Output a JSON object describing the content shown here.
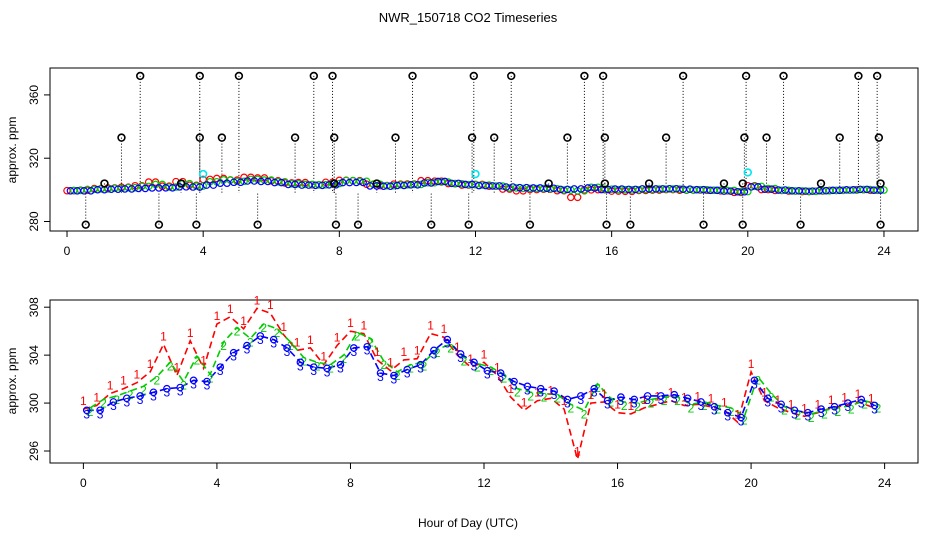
{
  "title": "NWR_150718  CO2 Timeseries",
  "colors": {
    "black": "#000000",
    "red": "#ff0000",
    "green": "#00cc00",
    "blue": "#0000ff",
    "cyan": "#00e5ee"
  },
  "chart_data": [
    {
      "type": "scatter",
      "panel": "top",
      "ylabel": "approx. ppm",
      "xlabel": "",
      "xlim": [
        -0.5,
        25
      ],
      "ylim": [
        274,
        377
      ],
      "xticks": [
        0,
        4,
        8,
        12,
        16,
        20,
        24
      ],
      "yticks": [
        280,
        320,
        360
      ],
      "ytick_labels": [
        "280",
        "320",
        "360"
      ],
      "outliers_high": [
        {
          "x": 2.15,
          "y": 372
        },
        {
          "x": 3.9,
          "y": 372
        },
        {
          "x": 5.05,
          "y": 372
        },
        {
          "x": 7.25,
          "y": 372
        },
        {
          "x": 7.8,
          "y": 372
        },
        {
          "x": 10.15,
          "y": 372
        },
        {
          "x": 11.95,
          "y": 372
        },
        {
          "x": 13.05,
          "y": 372
        },
        {
          "x": 15.2,
          "y": 372
        },
        {
          "x": 15.75,
          "y": 372
        },
        {
          "x": 18.1,
          "y": 372
        },
        {
          "x": 19.95,
          "y": 372
        },
        {
          "x": 21.05,
          "y": 372
        },
        {
          "x": 23.25,
          "y": 372
        },
        {
          "x": 23.8,
          "y": 372
        }
      ],
      "outliers_mid": [
        {
          "x": 1.6,
          "y": 333
        },
        {
          "x": 3.9,
          "y": 333
        },
        {
          "x": 4.55,
          "y": 333
        },
        {
          "x": 6.7,
          "y": 333
        },
        {
          "x": 7.85,
          "y": 333
        },
        {
          "x": 9.65,
          "y": 333
        },
        {
          "x": 11.9,
          "y": 333
        },
        {
          "x": 12.55,
          "y": 333
        },
        {
          "x": 14.7,
          "y": 333
        },
        {
          "x": 15.8,
          "y": 333
        },
        {
          "x": 17.6,
          "y": 333
        },
        {
          "x": 19.9,
          "y": 333
        },
        {
          "x": 20.55,
          "y": 333
        },
        {
          "x": 22.7,
          "y": 333
        },
        {
          "x": 23.85,
          "y": 333
        }
      ],
      "outliers_low": [
        {
          "x": 0.55,
          "y": 278
        },
        {
          "x": 2.7,
          "y": 278
        },
        {
          "x": 3.8,
          "y": 278
        },
        {
          "x": 5.6,
          "y": 278
        },
        {
          "x": 7.9,
          "y": 278
        },
        {
          "x": 8.55,
          "y": 278
        },
        {
          "x": 10.7,
          "y": 278
        },
        {
          "x": 11.8,
          "y": 278
        },
        {
          "x": 13.6,
          "y": 278
        },
        {
          "x": 15.85,
          "y": 278
        },
        {
          "x": 16.55,
          "y": 278
        },
        {
          "x": 18.7,
          "y": 278
        },
        {
          "x": 19.85,
          "y": 278
        },
        {
          "x": 21.55,
          "y": 278
        },
        {
          "x": 23.9,
          "y": 278
        }
      ],
      "outliers_near": [
        {
          "x": 1.1,
          "y": 304
        },
        {
          "x": 3.35,
          "y": 304
        },
        {
          "x": 7.85,
          "y": 304
        },
        {
          "x": 9.1,
          "y": 304
        },
        {
          "x": 14.15,
          "y": 304
        },
        {
          "x": 15.8,
          "y": 304
        },
        {
          "x": 17.1,
          "y": 304
        },
        {
          "x": 19.3,
          "y": 304
        },
        {
          "x": 19.85,
          "y": 304
        },
        {
          "x": 22.15,
          "y": 304
        },
        {
          "x": 23.9,
          "y": 304
        }
      ],
      "cyan_points": [
        {
          "x": 4.0,
          "y": 310
        },
        {
          "x": 12.0,
          "y": 310
        },
        {
          "x": 20.0,
          "y": 311
        }
      ]
    },
    {
      "type": "line",
      "panel": "bottom",
      "ylabel": "approx. ppm",
      "xlabel": "Hour of Day (UTC)",
      "xlim": [
        -1.0,
        25
      ],
      "ylim": [
        295,
        308.6
      ],
      "xticks": [
        0,
        4,
        8,
        12,
        16,
        20,
        24
      ],
      "yticks": [
        296,
        300,
        304,
        308
      ],
      "ytick_labels": [
        "296",
        "300",
        "304",
        "308"
      ],
      "series": [
        {
          "name": "1",
          "color": "#ff0000",
          "marker": "1",
          "x": [
            0,
            0.4,
            0.8,
            1.2,
            1.6,
            2.0,
            2.4,
            2.8,
            3.2,
            3.6,
            4.0,
            4.4,
            4.8,
            5.2,
            5.6,
            6.0,
            6.4,
            6.8,
            7.2,
            7.6,
            8.0,
            8.4,
            8.8,
            9.2,
            9.6,
            10.0,
            10.4,
            10.8,
            11.2,
            11.6,
            12.0,
            12.4,
            12.8,
            13.2,
            13.6,
            14.0,
            14.4,
            14.8,
            15.2,
            15.6,
            16.0,
            16.4,
            16.8,
            17.2,
            17.6,
            18.0,
            18.4,
            18.8,
            19.2,
            19.6,
            20.0,
            20.4,
            20.8,
            21.2,
            21.6,
            22.0,
            22.4,
            22.8,
            23.2,
            23.6
          ],
          "values": [
            299.5,
            299.8,
            300.8,
            301.2,
            301.7,
            302.6,
            304.9,
            302.3,
            305.2,
            302.9,
            306.6,
            307.2,
            306.2,
            307.9,
            307.5,
            305.7,
            304.4,
            304.6,
            303.2,
            304.8,
            306.0,
            305.8,
            303.6,
            302.7,
            303.6,
            303.7,
            305.8,
            305.5,
            304.0,
            303.0,
            303.4,
            302.3,
            300.5,
            299.4,
            300.2,
            300.4,
            299.5,
            295.3,
            300.0,
            300.1,
            299.2,
            299.1,
            299.6,
            299.9,
            300.2,
            299.8,
            299.9,
            299.7,
            299.4,
            298.4,
            302.6,
            300.2,
            299.6,
            299.2,
            298.9,
            299.2,
            299.6,
            299.8,
            300.1,
            299.7
          ]
        },
        {
          "name": "2",
          "color": "#00cc00",
          "marker": "2",
          "x": [
            0.2,
            0.6,
            1.0,
            1.4,
            1.8,
            2.2,
            2.6,
            3.0,
            3.4,
            3.8,
            4.2,
            4.6,
            5.0,
            5.4,
            5.8,
            6.2,
            6.6,
            7.0,
            7.4,
            7.8,
            8.2,
            8.6,
            9.0,
            9.4,
            9.8,
            10.2,
            10.6,
            11.0,
            11.4,
            11.8,
            12.2,
            12.6,
            13.0,
            13.4,
            13.8,
            14.2,
            14.6,
            15.0,
            15.4,
            15.8,
            16.2,
            16.6,
            17.0,
            17.4,
            17.8,
            18.2,
            18.6,
            19.0,
            19.4,
            19.8,
            20.2,
            20.6,
            21.0,
            21.4,
            21.8,
            22.2,
            22.6,
            23.0,
            23.4,
            23.8
          ],
          "values": [
            299.6,
            300.3,
            300.6,
            301.0,
            301.4,
            302.2,
            303.4,
            301.8,
            303.9,
            302.4,
            305.1,
            306.3,
            305.4,
            306.6,
            306.2,
            305.1,
            303.8,
            303.4,
            303.2,
            304.0,
            305.9,
            305.4,
            303.5,
            302.6,
            303.2,
            303.4,
            304.5,
            304.9,
            303.8,
            303.3,
            303.0,
            302.4,
            301.2,
            300.9,
            300.8,
            300.7,
            299.9,
            299.4,
            301.6,
            300.4,
            300.1,
            300.0,
            300.3,
            300.5,
            300.5,
            299.9,
            300.1,
            299.8,
            299.6,
            298.9,
            302.2,
            300.8,
            299.7,
            299.3,
            299.1,
            299.4,
            299.6,
            299.8,
            300.2,
            299.9
          ]
        },
        {
          "name": "3",
          "color": "#0000ff",
          "marker": "3",
          "x": [
            0.1,
            0.5,
            0.9,
            1.3,
            1.7,
            2.1,
            2.5,
            2.9,
            3.3,
            3.7,
            4.1,
            4.5,
            4.9,
            5.3,
            5.7,
            6.1,
            6.5,
            6.9,
            7.3,
            7.7,
            8.1,
            8.5,
            8.9,
            9.3,
            9.7,
            10.1,
            10.5,
            10.9,
            11.3,
            11.7,
            12.1,
            12.5,
            12.9,
            13.3,
            13.7,
            14.1,
            14.5,
            14.9,
            15.3,
            15.7,
            16.1,
            16.5,
            16.9,
            17.3,
            17.7,
            18.1,
            18.5,
            18.9,
            19.3,
            19.7,
            20.1,
            20.5,
            20.9,
            21.3,
            21.7,
            22.1,
            22.5,
            22.9,
            23.3,
            23.7
          ],
          "values": [
            299.4,
            299.4,
            300.1,
            300.4,
            300.6,
            300.9,
            301.2,
            301.3,
            301.9,
            301.8,
            303.0,
            304.2,
            304.8,
            305.6,
            305.3,
            304.6,
            303.4,
            303.0,
            302.9,
            303.2,
            304.6,
            304.7,
            302.5,
            302.3,
            302.8,
            303.2,
            304.4,
            305.3,
            304.1,
            303.4,
            302.7,
            302.5,
            301.8,
            301.4,
            301.2,
            301.0,
            300.3,
            300.6,
            301.2,
            300.2,
            300.5,
            300.3,
            300.6,
            300.6,
            300.7,
            300.4,
            300.1,
            299.7,
            299.2,
            298.8,
            301.9,
            300.4,
            299.9,
            299.4,
            299.2,
            299.5,
            299.7,
            300.0,
            300.3,
            299.8
          ]
        }
      ]
    }
  ]
}
